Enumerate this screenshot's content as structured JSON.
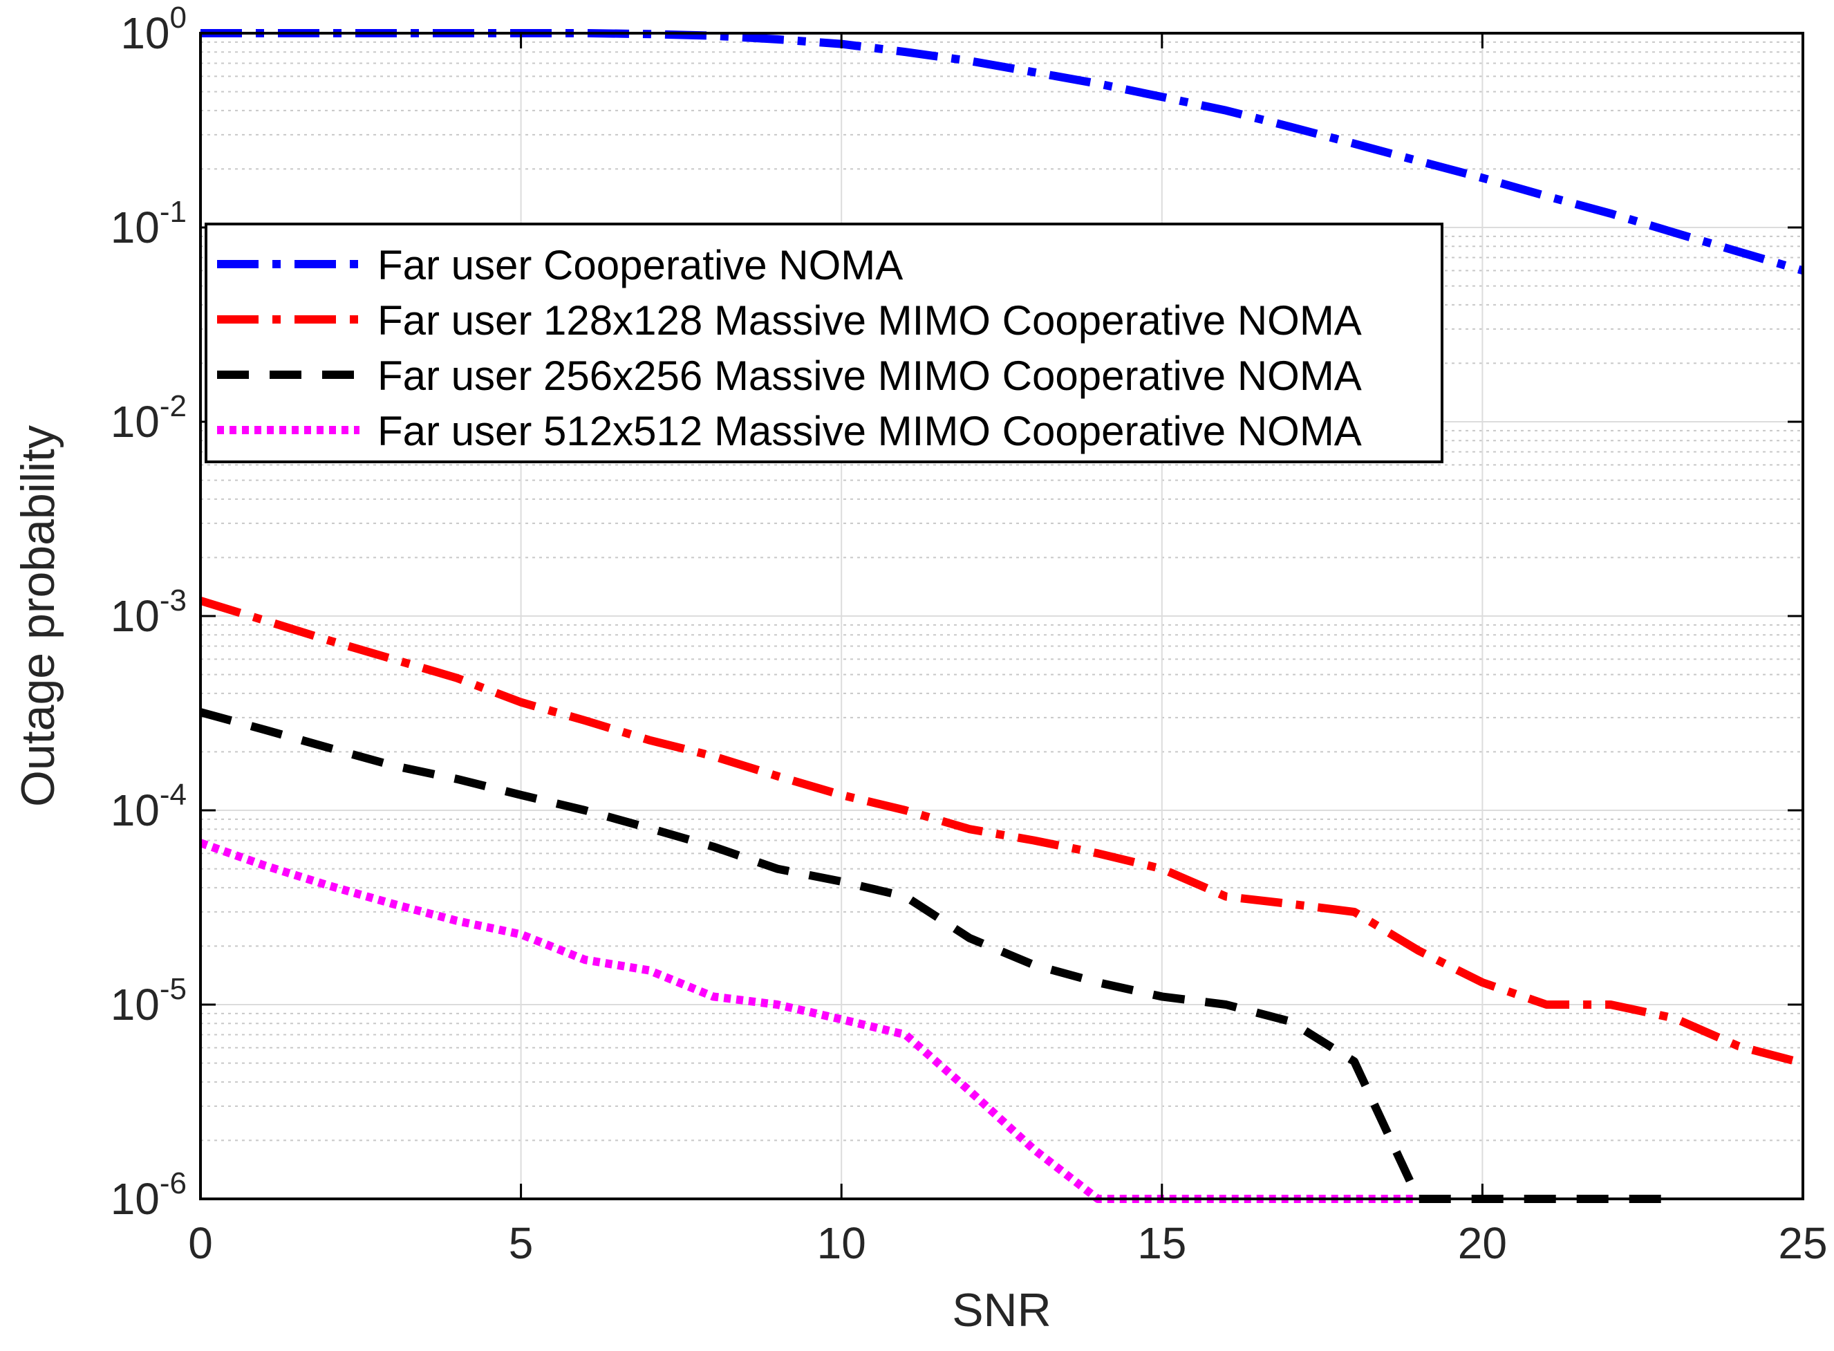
{
  "chart_data": {
    "type": "line",
    "title": "",
    "xlabel": "SNR",
    "ylabel": "Outage probability",
    "xlim": [
      0,
      25
    ],
    "ylim": [
      1e-06,
      1
    ],
    "yscale": "log",
    "grid": true,
    "minor_grid": true,
    "legend_position": "top-left",
    "x_ticks": [
      0,
      5,
      10,
      15,
      20,
      25
    ],
    "x_tick_labels": [
      "0",
      "5",
      "10",
      "15",
      "20",
      "25"
    ],
    "y_ticks": [
      {
        "value": 1,
        "base": "10",
        "exp": "0"
      },
      {
        "value": 0.1,
        "base": "10",
        "exp": "-1"
      },
      {
        "value": 0.01,
        "base": "10",
        "exp": "-2"
      },
      {
        "value": 0.001,
        "base": "10",
        "exp": "-3"
      },
      {
        "value": 0.0001,
        "base": "10",
        "exp": "-4"
      },
      {
        "value": 1e-05,
        "base": "10",
        "exp": "-5"
      },
      {
        "value": 1e-06,
        "base": "10",
        "exp": "-6"
      }
    ],
    "series": [
      {
        "name": "Far user Cooperative NOMA",
        "color": "#0000ff",
        "dash": "dashdot",
        "x": [
          0,
          1,
          2,
          3,
          4,
          5,
          6,
          7,
          8,
          9,
          10,
          11,
          12,
          13,
          14,
          15,
          16,
          17,
          18,
          19,
          20,
          21,
          22,
          23,
          24,
          25
        ],
        "y": [
          1.0,
          1.0,
          1.0,
          1.0,
          1.0,
          1.0,
          1.0,
          0.99,
          0.97,
          0.93,
          0.88,
          0.8,
          0.72,
          0.63,
          0.55,
          0.47,
          0.4,
          0.33,
          0.27,
          0.22,
          0.18,
          0.145,
          0.118,
          0.094,
          0.075,
          0.06
        ]
      },
      {
        "name": "Far user 128x128 Massive MIMO Cooperative NOMA",
        "color": "#ff0000",
        "dash": "dashdot",
        "x": [
          0,
          1,
          2,
          3,
          4,
          5,
          6,
          7,
          8,
          9,
          10,
          11,
          12,
          13,
          14,
          15,
          16,
          17,
          18,
          19,
          20,
          21,
          22,
          23,
          24,
          25
        ],
        "y": [
          0.0012,
          0.00095,
          0.00075,
          0.0006,
          0.00048,
          0.00036,
          0.00029,
          0.00023,
          0.00019,
          0.00015,
          0.00012,
          0.0001,
          8e-05,
          7e-05,
          6e-05,
          5e-05,
          3.6e-05,
          3.3e-05,
          3e-05,
          1.9e-05,
          1.3e-05,
          1e-05,
          1e-05,
          8.5e-06,
          6.1e-06,
          5e-06
        ]
      },
      {
        "name": "Far user 256x256 Massive MIMO Cooperative NOMA",
        "color": "#000000",
        "dash": "dashed",
        "x": [
          0,
          1,
          2,
          3,
          4,
          5,
          6,
          7,
          8,
          9,
          10,
          11,
          12,
          13,
          14,
          15,
          16,
          17,
          18,
          19,
          20,
          21,
          22,
          23
        ],
        "y": [
          0.00032,
          0.00026,
          0.00021,
          0.00017,
          0.000145,
          0.00012,
          0.0001,
          8.1e-05,
          6.5e-05,
          5e-05,
          4.3e-05,
          3.6e-05,
          2.2e-05,
          1.6e-05,
          1.3e-05,
          1.1e-05,
          1e-05,
          8.2e-06,
          5.1e-06,
          1e-06,
          1e-06,
          1e-06,
          1e-06,
          1e-06
        ]
      },
      {
        "name": "Far user 512x512 Massive MIMO Cooperative NOMA",
        "color": "#ff00ff",
        "dash": "dotted",
        "x": [
          0,
          1,
          2,
          3,
          4,
          5,
          6,
          7,
          8,
          9,
          10,
          11,
          12,
          13,
          14,
          15,
          16,
          17,
          18,
          19
        ],
        "y": [
          6.8e-05,
          5.2e-05,
          4.1e-05,
          3.3e-05,
          2.7e-05,
          2.3e-05,
          1.7e-05,
          1.5e-05,
          1.1e-05,
          1e-05,
          8.4e-06,
          7e-06,
          3.6e-06,
          1.8e-06,
          1e-06,
          1e-06,
          1e-06,
          1e-06,
          1e-06,
          1e-06
        ]
      }
    ]
  }
}
